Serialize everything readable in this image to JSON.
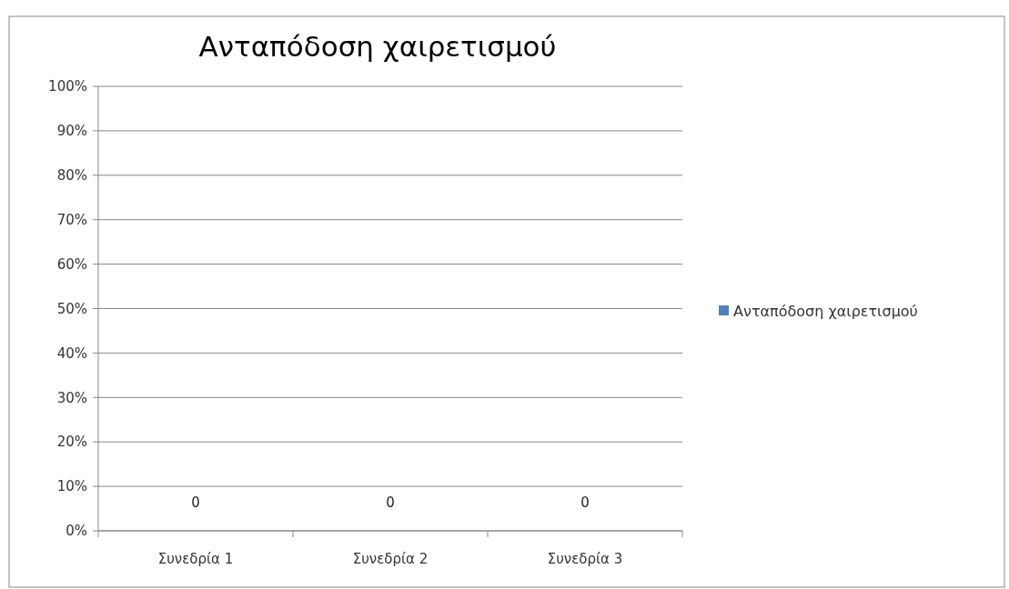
{
  "chart_data": {
    "type": "bar",
    "title": "Ανταπόδοση χαιρετισμού",
    "categories": [
      "Συνεδρία 1",
      "Συνεδρία 2",
      "Συνεδρία 3"
    ],
    "series": [
      {
        "name": "Ανταπόδοση χαιρετισμού",
        "color": "#4f81bd",
        "values": [
          0,
          0,
          0
        ]
      }
    ],
    "ylim": [
      0,
      100
    ],
    "yticks": [
      {
        "value": 0,
        "label": "0%"
      },
      {
        "value": 10,
        "label": "10%"
      },
      {
        "value": 20,
        "label": "20%"
      },
      {
        "value": 30,
        "label": "30%"
      },
      {
        "value": 40,
        "label": "40%"
      },
      {
        "value": 50,
        "label": "50%"
      },
      {
        "value": 60,
        "label": "60%"
      },
      {
        "value": 70,
        "label": "70%"
      },
      {
        "value": 80,
        "label": "80%"
      },
      {
        "value": 90,
        "label": "90%"
      },
      {
        "value": 100,
        "label": "100%"
      }
    ],
    "grid": "y",
    "legend": "right",
    "data_labels": true
  }
}
